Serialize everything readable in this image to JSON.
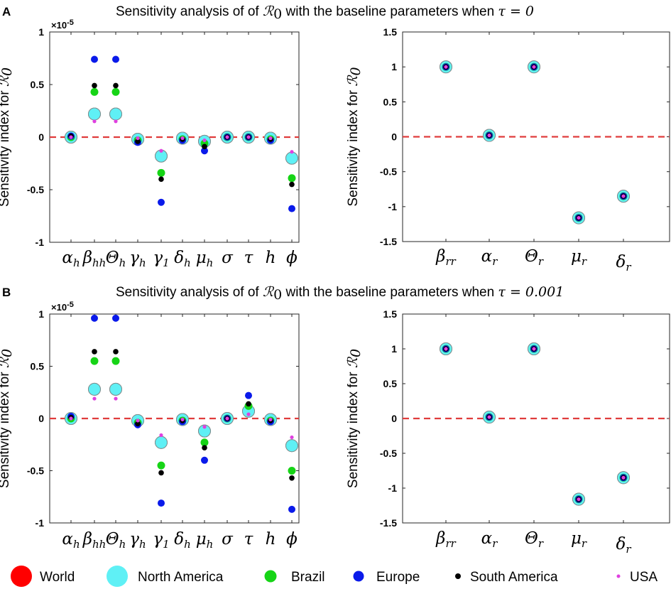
{
  "legend": [
    {
      "name": "World",
      "color": "#ff0000",
      "size": "large"
    },
    {
      "name": "North America",
      "color": "#5ff0f5",
      "size": "large"
    },
    {
      "name": "Brazil",
      "color": "#16d416",
      "size": "medium"
    },
    {
      "name": "Europe",
      "color": "#0a1aea",
      "size": "medium"
    },
    {
      "name": "South America",
      "color": "#000000",
      "size": "small"
    },
    {
      "name": "USA",
      "color": "#e040e0",
      "size": "tiny"
    }
  ],
  "panels": [
    {
      "letter": "A",
      "title_prefix": "Sensitivity analysis of of",
      "title_r0": "ℛ",
      "title_r0_sub": "0",
      "title_middle": "with the baseline parameters when",
      "title_tau": "τ = 0"
    },
    {
      "letter": "B",
      "title_prefix": "Sensitivity analysis of of",
      "title_r0": "ℛ",
      "title_r0_sub": "0",
      "title_middle": "with the baseline parameters when",
      "title_tau": "τ = 0.001"
    }
  ],
  "ylabel": {
    "text": "Sensitivity index for",
    "math": "ℛ",
    "sub": "0"
  },
  "chart_data": [
    {
      "id": "A-left",
      "type": "scatter",
      "panel": "A",
      "exponent_label": "×10",
      "exponent_power": "-5",
      "ylim": [
        -1,
        1
      ],
      "yticks": [
        "-1",
        "-0.5",
        "0",
        "0.5",
        "1"
      ],
      "ytick_values": [
        -1,
        -0.5,
        0,
        0.5,
        1
      ],
      "baseline": 0,
      "categories": [
        {
          "base": "α",
          "sub": "h"
        },
        {
          "base": "β",
          "sub": "hh"
        },
        {
          "base": "Θ",
          "sub": "h"
        },
        {
          "base": "γ",
          "sub": "h"
        },
        {
          "base": "γ",
          "sub": "1"
        },
        {
          "base": "δ",
          "sub": "h"
        },
        {
          "base": "μ",
          "sub": "h"
        },
        {
          "base": "σ",
          "sub": ""
        },
        {
          "base": "τ",
          "sub": ""
        },
        {
          "base": "h",
          "sub": ""
        },
        {
          "base": "ϕ",
          "sub": ""
        }
      ],
      "series": [
        {
          "name": "World",
          "values": [
            0.0,
            0.22,
            0.22,
            -0.02,
            -0.18,
            -0.01,
            -0.04,
            0.0,
            0.0,
            -0.01,
            -0.2
          ]
        },
        {
          "name": "North America",
          "values": [
            0.0,
            0.22,
            0.22,
            -0.02,
            -0.18,
            -0.01,
            -0.04,
            0.0,
            0.0,
            -0.01,
            -0.2
          ]
        },
        {
          "name": "Brazil",
          "values": [
            0.0,
            0.43,
            0.43,
            -0.03,
            -0.34,
            -0.02,
            -0.06,
            0.0,
            0.0,
            -0.02,
            -0.39
          ]
        },
        {
          "name": "Europe",
          "values": [
            0.01,
            0.74,
            0.74,
            -0.05,
            -0.62,
            -0.03,
            -0.13,
            0.0,
            0.0,
            -0.03,
            -0.68
          ]
        },
        {
          "name": "South America",
          "values": [
            0.01,
            0.49,
            0.49,
            -0.04,
            -0.4,
            -0.02,
            -0.09,
            0.0,
            0.0,
            -0.02,
            -0.45
          ]
        },
        {
          "name": "USA",
          "values": [
            0.0,
            0.15,
            0.15,
            -0.01,
            -0.13,
            -0.01,
            -0.03,
            0.0,
            0.0,
            -0.01,
            -0.14
          ]
        }
      ]
    },
    {
      "id": "A-right",
      "type": "scatter",
      "panel": "A",
      "ylim": [
        -1.5,
        1.5
      ],
      "yticks": [
        "-1.5",
        "-1",
        "-0.5",
        "0",
        "0.5",
        "1",
        "1.5"
      ],
      "ytick_values": [
        -1.5,
        -1,
        -0.5,
        0,
        0.5,
        1,
        1.5
      ],
      "baseline": 0,
      "categories": [
        {
          "base": "β",
          "sub": "rr"
        },
        {
          "base": "α",
          "sub": "r"
        },
        {
          "base": "Θ",
          "sub": "r"
        },
        {
          "base": "μ",
          "sub": "r"
        },
        {
          "base": "δ",
          "sub": "r"
        }
      ],
      "series": [
        {
          "name": "World",
          "values": [
            1.0,
            0.02,
            1.0,
            -1.16,
            -0.85
          ]
        },
        {
          "name": "North America",
          "values": [
            1.0,
            0.02,
            1.0,
            -1.16,
            -0.85
          ]
        },
        {
          "name": "Brazil",
          "values": [
            1.0,
            0.02,
            1.0,
            -1.16,
            -0.85
          ]
        },
        {
          "name": "Europe",
          "values": [
            1.0,
            0.02,
            1.0,
            -1.16,
            -0.85
          ]
        },
        {
          "name": "South America",
          "values": [
            1.0,
            0.02,
            1.0,
            -1.16,
            -0.85
          ]
        },
        {
          "name": "USA",
          "values": [
            1.0,
            0.02,
            1.0,
            -1.16,
            -0.85
          ]
        }
      ]
    },
    {
      "id": "B-left",
      "type": "scatter",
      "panel": "B",
      "exponent_label": "×10",
      "exponent_power": "-5",
      "ylim": [
        -1,
        1
      ],
      "yticks": [
        "-1",
        "-0.5",
        "0",
        "0.5",
        "1"
      ],
      "ytick_values": [
        -1,
        -0.5,
        0,
        0.5,
        1
      ],
      "baseline": 0,
      "categories": [
        {
          "base": "α",
          "sub": "h"
        },
        {
          "base": "β",
          "sub": "hh"
        },
        {
          "base": "Θ",
          "sub": "h"
        },
        {
          "base": "γ",
          "sub": "h"
        },
        {
          "base": "γ",
          "sub": "1"
        },
        {
          "base": "δ",
          "sub": "h"
        },
        {
          "base": "μ",
          "sub": "h"
        },
        {
          "base": "σ",
          "sub": ""
        },
        {
          "base": "τ",
          "sub": ""
        },
        {
          "base": "h",
          "sub": ""
        },
        {
          "base": "ϕ",
          "sub": ""
        }
      ],
      "series": [
        {
          "name": "World",
          "values": [
            0.0,
            0.28,
            0.28,
            -0.02,
            -0.23,
            -0.01,
            -0.12,
            0.0,
            0.07,
            -0.01,
            -0.26
          ]
        },
        {
          "name": "North America",
          "values": [
            0.0,
            0.28,
            0.28,
            -0.02,
            -0.23,
            -0.01,
            -0.12,
            0.0,
            0.07,
            -0.01,
            -0.26
          ]
        },
        {
          "name": "Brazil",
          "values": [
            0.0,
            0.55,
            0.55,
            -0.04,
            -0.45,
            -0.02,
            -0.23,
            0.0,
            0.12,
            -0.02,
            -0.5
          ]
        },
        {
          "name": "Europe",
          "values": [
            0.02,
            0.96,
            0.96,
            -0.06,
            -0.81,
            -0.03,
            -0.4,
            0.0,
            0.22,
            -0.03,
            -0.87
          ]
        },
        {
          "name": "South America",
          "values": [
            0.01,
            0.64,
            0.64,
            -0.05,
            -0.52,
            -0.02,
            -0.28,
            0.0,
            0.14,
            -0.02,
            -0.57
          ]
        },
        {
          "name": "USA",
          "values": [
            0.0,
            0.19,
            0.19,
            -0.02,
            -0.16,
            -0.01,
            -0.08,
            0.0,
            0.04,
            -0.01,
            -0.18
          ]
        }
      ]
    },
    {
      "id": "B-right",
      "type": "scatter",
      "panel": "B",
      "ylim": [
        -1.5,
        1.5
      ],
      "yticks": [
        "-1.5",
        "-1",
        "-0.5",
        "0",
        "0.5",
        "1",
        "1.5"
      ],
      "ytick_values": [
        -1.5,
        -1,
        -0.5,
        0,
        0.5,
        1,
        1.5
      ],
      "baseline": 0,
      "categories": [
        {
          "base": "β",
          "sub": "rr"
        },
        {
          "base": "α",
          "sub": "r"
        },
        {
          "base": "Θ",
          "sub": "r"
        },
        {
          "base": "μ",
          "sub": "r"
        },
        {
          "base": "δ",
          "sub": "r"
        }
      ],
      "series": [
        {
          "name": "World",
          "values": [
            1.0,
            0.02,
            1.0,
            -1.16,
            -0.85
          ]
        },
        {
          "name": "North America",
          "values": [
            1.0,
            0.02,
            1.0,
            -1.16,
            -0.85
          ]
        },
        {
          "name": "Brazil",
          "values": [
            1.0,
            0.02,
            1.0,
            -1.16,
            -0.85
          ]
        },
        {
          "name": "Europe",
          "values": [
            1.0,
            0.02,
            1.0,
            -1.16,
            -0.85
          ]
        },
        {
          "name": "South America",
          "values": [
            1.0,
            0.02,
            1.0,
            -1.16,
            -0.85
          ]
        },
        {
          "name": "USA",
          "values": [
            1.0,
            0.02,
            1.0,
            -1.16,
            -0.85
          ]
        }
      ]
    }
  ]
}
